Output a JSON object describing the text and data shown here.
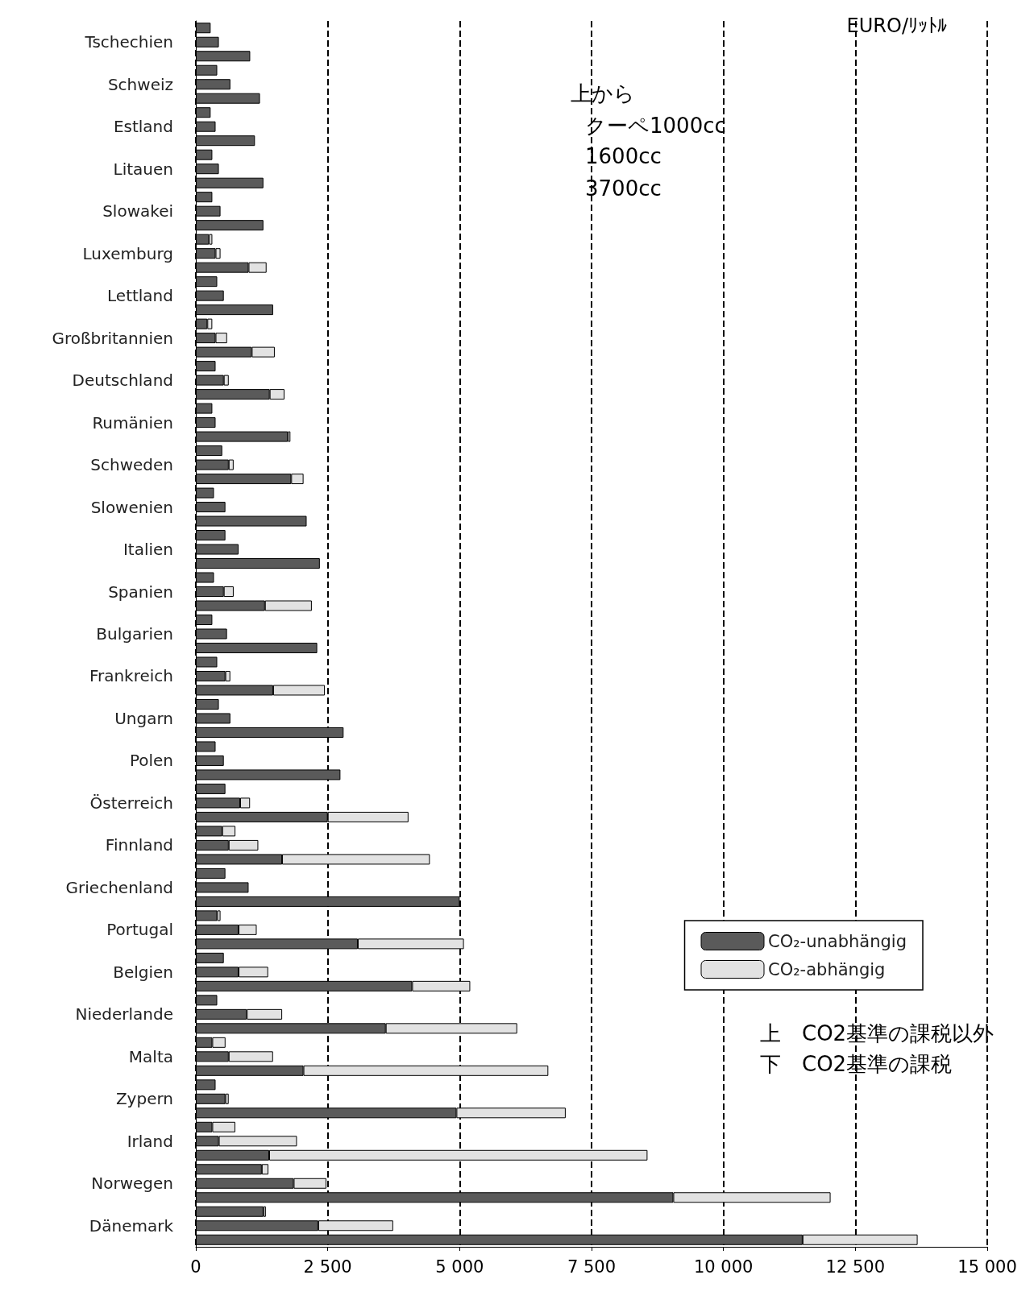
{
  "chart_data": {
    "type": "bar",
    "orientation": "horizontal",
    "stacked": true,
    "xlabel": "EURO/ﾘｯﾄﾙ",
    "categories": [
      null,
      "Tschechien",
      null,
      null,
      "Schweiz",
      null,
      null,
      "Estland",
      null,
      null,
      "Litauen",
      null,
      null,
      "Slowakei",
      null,
      null,
      "Luxemburg",
      null,
      null,
      "Lettland",
      null,
      null,
      "Großbritannien",
      null,
      null,
      "Deutschland",
      null,
      null,
      "Rumänien",
      null,
      null,
      "Schweden",
      null,
      null,
      "Slowenien",
      null,
      null,
      "Italien",
      null,
      null,
      "Spanien",
      null,
      null,
      "Bulgarien",
      null,
      null,
      "Frankreich",
      null,
      null,
      "Ungarn",
      null,
      null,
      "Polen",
      null,
      null,
      "Österreich",
      null,
      null,
      "Finnland",
      null,
      null,
      "Griechenland",
      null,
      null,
      "Portugal",
      null,
      null,
      "Belgien",
      null,
      null,
      "Niederlande",
      null,
      null,
      "Malta",
      null,
      null,
      "Zypern",
      null,
      null,
      "Irland",
      null,
      null,
      "Norwegen",
      null,
      null,
      "Dänemark",
      null
    ],
    "series": [
      {
        "name": "CO₂-unabhängig",
        "color": "#5a5a5a",
        "values": [
          280,
          436,
          1030,
          405,
          654,
          1215,
          280,
          374,
          1120,
          312,
          436,
          1280,
          312,
          467,
          1280,
          250,
          374,
          1000,
          405,
          530,
          1465,
          218,
          374,
          1060,
          374,
          530,
          1400,
          312,
          374,
          1745,
          500,
          623,
          1807,
          343,
          560,
          2100,
          560,
          810,
          2350,
          343,
          530,
          1310,
          312,
          590,
          2300,
          405,
          560,
          1465,
          436,
          654,
          2800,
          374,
          530,
          2740,
          560,
          840,
          2500,
          500,
          623,
          1635,
          560,
          1000,
          5000,
          405,
          810,
          3070,
          530,
          810,
          4100,
          405,
          966,
          3600,
          312,
          623,
          2040,
          374,
          560,
          4940,
          312,
          436,
          1390,
          1250,
          1855,
          9050,
          1280,
          2320,
          11500
        ]
      },
      {
        "name": "CO₂-abhängig",
        "color": "#e2e2e2",
        "values": [
          null,
          null,
          null,
          null,
          null,
          null,
          null,
          null,
          null,
          null,
          null,
          null,
          null,
          null,
          null,
          62,
          93,
          340,
          null,
          null,
          null,
          93,
          218,
          436,
          null,
          93,
          280,
          null,
          null,
          47,
          null,
          93,
          234,
          null,
          null,
          null,
          null,
          null,
          null,
          null,
          187,
          888,
          null,
          null,
          null,
          null,
          93,
          980,
          null,
          null,
          null,
          null,
          null,
          null,
          null,
          187,
          1530,
          250,
          560,
          2800,
          null,
          null,
          null,
          62,
          343,
          2010,
          null,
          560,
          1100,
          null,
          670,
          2490,
          250,
          840,
          4640,
          null,
          62,
          2070,
          436,
          1480,
          7170,
          125,
          620,
          2980,
          47,
          1420,
          2180
        ]
      }
    ],
    "xlim": [
      0,
      15000
    ],
    "xticks": [
      0,
      {
        "value": 2500,
        "label": "2 500"
      },
      {
        "value": 5000,
        "label": "5 000"
      },
      {
        "value": 7500,
        "label": "7 500"
      },
      {
        "value": 10000,
        "label": "10 000"
      },
      {
        "value": 12500,
        "label": "12 500"
      },
      {
        "value": 15000,
        "label": "15 000"
      }
    ],
    "grid": "x",
    "legend": "right",
    "annotations": [
      "上から",
      "クーペ1000cc",
      "1600cc",
      "3700cc",
      "上　CO2基準の課税以外",
      "下　CO2基準の課税"
    ]
  }
}
